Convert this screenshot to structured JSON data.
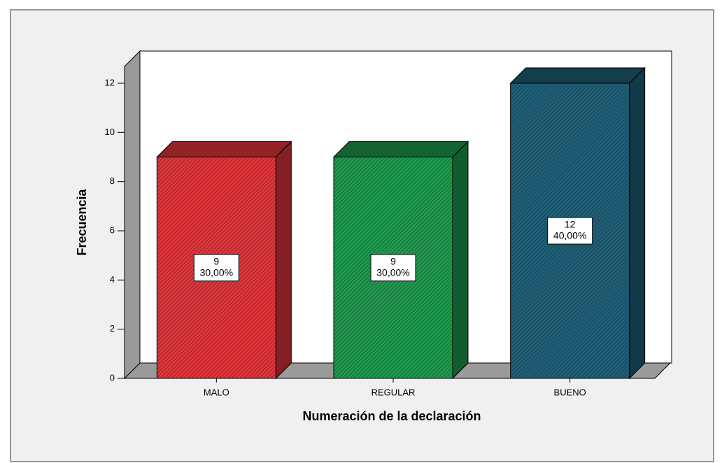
{
  "chart_data": {
    "type": "bar3d",
    "x_label": "Numeración de la declaración",
    "y_label": "Frecuencia",
    "categories": [
      "MALO",
      "REGULAR",
      "BUENO"
    ],
    "values": [
      9,
      9,
      12
    ],
    "percent_values": [
      30,
      30,
      40
    ],
    "percent_labels": [
      "30,00%",
      "30,00%",
      "40,00%"
    ],
    "colors": [
      "#e0353b",
      "#1f9a4f",
      "#1f5f78"
    ],
    "ylim": [
      0,
      12
    ],
    "yticks": [
      0,
      2,
      4,
      6,
      8,
      10,
      12
    ]
  }
}
